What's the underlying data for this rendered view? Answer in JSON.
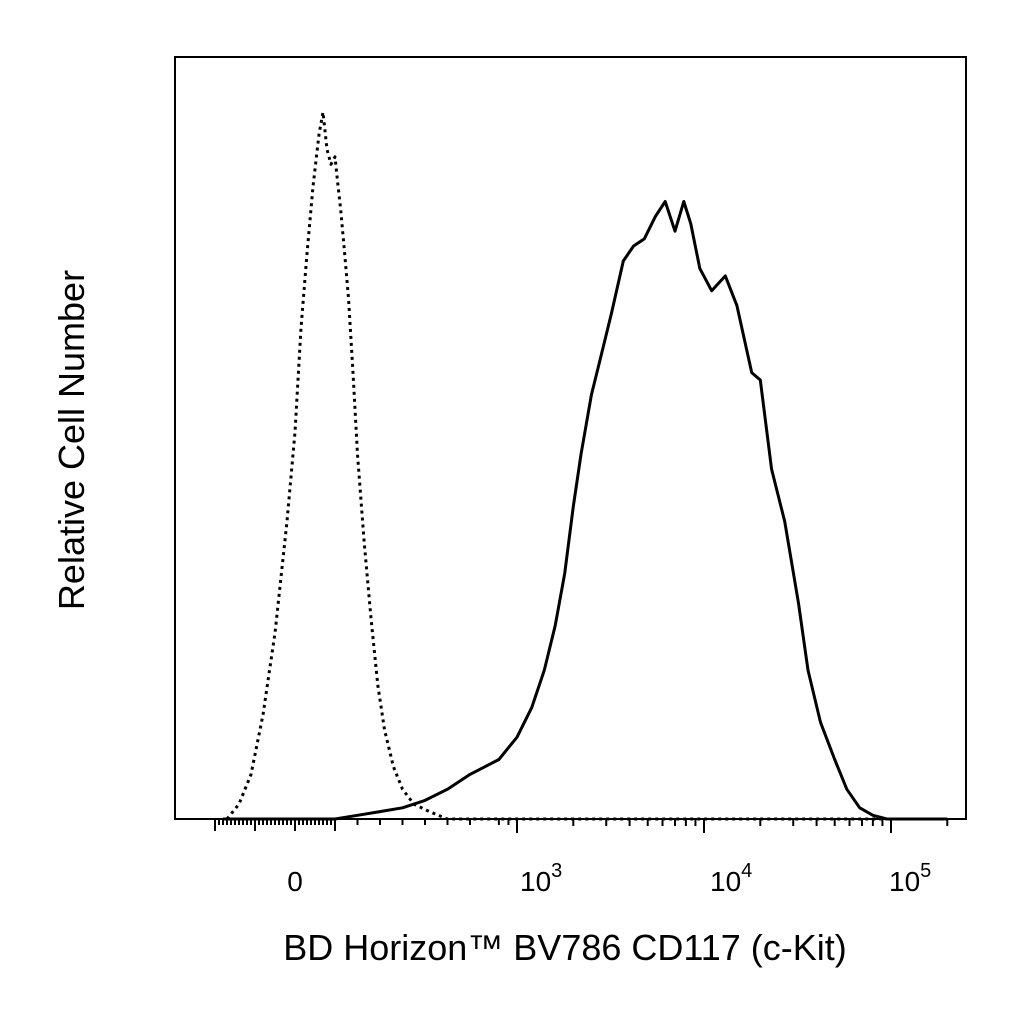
{
  "chart_data": {
    "type": "line",
    "xlabel": "BD Horizon™ BV786 CD117 (c-Kit)",
    "ylabel": "Relative Cell Number",
    "x_scale": "biexponential",
    "x_tick_labels": [
      {
        "base": "0",
        "exp": ""
      },
      {
        "base": "10",
        "exp": "3"
      },
      {
        "base": "10",
        "exp": "4"
      },
      {
        "base": "10",
        "exp": "5"
      }
    ],
    "y_range": [
      0,
      100
    ],
    "grid": false,
    "legend": "none",
    "series": [
      {
        "style": "dotted",
        "points": [
          [
            -170,
            0
          ],
          [
            -140,
            2
          ],
          [
            -110,
            6
          ],
          [
            -80,
            14
          ],
          [
            -50,
            25
          ],
          [
            -20,
            40
          ],
          [
            0,
            52
          ],
          [
            15,
            66
          ],
          [
            30,
            76
          ],
          [
            45,
            85
          ],
          [
            60,
            92
          ],
          [
            70,
            95
          ],
          [
            80,
            90
          ],
          [
            90,
            88
          ],
          [
            100,
            89
          ],
          [
            110,
            86
          ],
          [
            125,
            82
          ],
          [
            140,
            77
          ],
          [
            160,
            70
          ],
          [
            180,
            60
          ],
          [
            200,
            49
          ],
          [
            230,
            37
          ],
          [
            260,
            27
          ],
          [
            290,
            18
          ],
          [
            320,
            12
          ],
          [
            360,
            7
          ],
          [
            400,
            4
          ],
          [
            450,
            2
          ],
          [
            520,
            1
          ],
          [
            600,
            0
          ],
          [
            1000,
            0
          ],
          [
            10000,
            0
          ],
          [
            200000,
            0
          ]
        ]
      },
      {
        "style": "solid",
        "points": [
          [
            -180,
            0
          ],
          [
            100,
            0
          ],
          [
            200,
            0.5
          ],
          [
            300,
            1
          ],
          [
            400,
            1.5
          ],
          [
            500,
            2.5
          ],
          [
            600,
            4
          ],
          [
            700,
            6
          ],
          [
            800,
            8
          ],
          [
            1000,
            11
          ],
          [
            1200,
            15
          ],
          [
            1400,
            20
          ],
          [
            1600,
            26
          ],
          [
            1800,
            33
          ],
          [
            2000,
            42
          ],
          [
            2200,
            49
          ],
          [
            2500,
            57
          ],
          [
            2800,
            62
          ],
          [
            3200,
            68
          ],
          [
            3700,
            75
          ],
          [
            4200,
            77
          ],
          [
            4800,
            78
          ],
          [
            5500,
            81
          ],
          [
            6200,
            83
          ],
          [
            7000,
            79
          ],
          [
            7800,
            83
          ],
          [
            8500,
            80
          ],
          [
            9500,
            74
          ],
          [
            11000,
            71
          ],
          [
            13000,
            73
          ],
          [
            15000,
            69
          ],
          [
            18000,
            60
          ],
          [
            20000,
            59
          ],
          [
            23000,
            47
          ],
          [
            27000,
            40
          ],
          [
            32000,
            29
          ],
          [
            36000,
            20
          ],
          [
            42000,
            13
          ],
          [
            50000,
            8
          ],
          [
            58000,
            4
          ],
          [
            68000,
            1.5
          ],
          [
            80000,
            0.5
          ],
          [
            95000,
            0
          ],
          [
            200000,
            0
          ]
        ]
      }
    ]
  }
}
